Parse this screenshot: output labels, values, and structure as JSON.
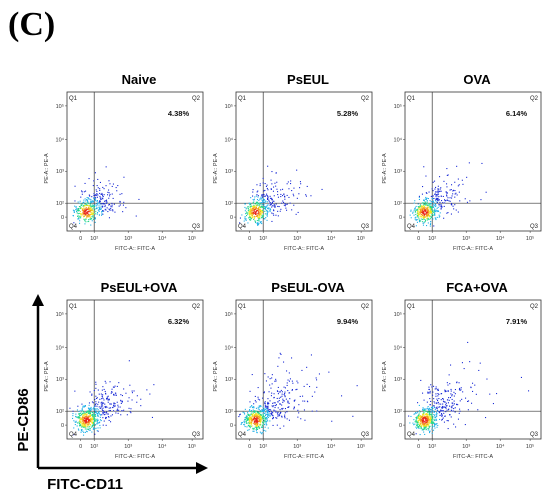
{
  "panel_label": "(C)",
  "axes": {
    "y_outer_label": "PE-CD86",
    "x_outer_label": "FITC-CD11",
    "x_inner_label": "FITC-A:: FITC-A",
    "y_inner_label": "PE-A:: PE-A",
    "x_ticks": [
      "0",
      "10²",
      "10³",
      "10⁴",
      "10⁵"
    ],
    "y_ticks": [
      "0",
      "10²",
      "10³",
      "10⁴",
      "10⁵"
    ],
    "quadrants": [
      "Q1",
      "Q2",
      "Q3",
      "Q4"
    ]
  },
  "chart_data": [
    {
      "type": "scatter",
      "title": "Naive",
      "q2_percent": "4.38%",
      "q2_value": 4.38,
      "spread": 0.55,
      "density": 420
    },
    {
      "type": "scatter",
      "title": "PsEUL",
      "q2_percent": "5.28%",
      "q2_value": 5.28,
      "spread": 0.62,
      "density": 460
    },
    {
      "type": "scatter",
      "title": "OVA",
      "q2_percent": "6.14%",
      "q2_value": 6.14,
      "spread": 0.66,
      "density": 480
    },
    {
      "type": "scatter",
      "title": "PsEUL+OVA",
      "q2_percent": "6.32%",
      "q2_value": 6.32,
      "spread": 0.75,
      "density": 560
    },
    {
      "type": "scatter",
      "title": "PsEUL-OVA",
      "q2_percent": "9.94%",
      "q2_value": 9.94,
      "spread": 0.95,
      "density": 620
    },
    {
      "type": "scatter",
      "title": "FCA+OVA",
      "q2_percent": "7.91%",
      "q2_value": 7.91,
      "spread": 0.85,
      "density": 580
    }
  ],
  "colors": {
    "density_scale": [
      "#1a2bd6",
      "#1fb0e8",
      "#21d68a",
      "#f2e61a",
      "#f29a1a",
      "#e8241a"
    ]
  }
}
